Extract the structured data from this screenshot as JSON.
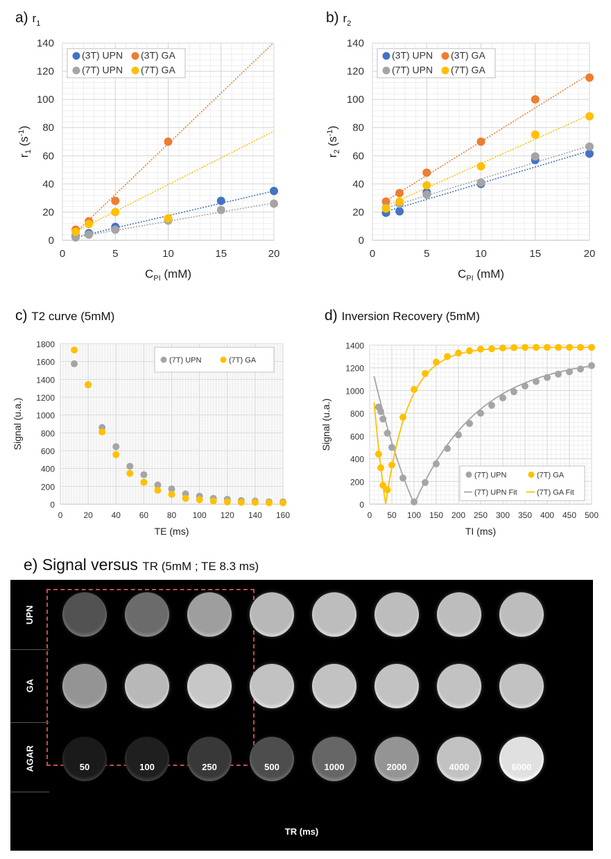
{
  "colors": {
    "upn_3t": "#4472C4",
    "ga_3t": "#ED7D31",
    "upn_7t": "#A5A5A5",
    "ga_7t": "#FFC000",
    "dash_box": "#C0504D"
  },
  "panel_a": {
    "letter": "a)",
    "title_main": "r",
    "title_sub": "1"
  },
  "panel_b": {
    "letter": "b)",
    "title_main": "r",
    "title_sub": "2"
  },
  "panel_c": {
    "letter": "c)",
    "title": "T2 curve (5mM)"
  },
  "panel_d": {
    "letter": "d)",
    "title": "Inversion Recovery (5mM)"
  },
  "panel_e": {
    "letter": "e)",
    "title_main": "Signal versus",
    "title_small": "TR (5mM ; TE 8.3 ms)"
  },
  "chart_data": [
    {
      "id": "a",
      "type": "scatter",
      "title": "r1",
      "xlabel": "C_PI (mM)",
      "ylabel": "r1 (s-1)",
      "xlim": [
        0,
        20
      ],
      "ylim": [
        0,
        140
      ],
      "xticks": [
        0,
        5,
        10,
        15,
        20
      ],
      "yticks": [
        0,
        20,
        40,
        60,
        80,
        100,
        120,
        140
      ],
      "grid": true,
      "legend_position": "top-left",
      "trendlines": "linear dotted",
      "series": [
        {
          "name": "(3T) UPN",
          "color": "#4472C4",
          "x": [
            1.25,
            2.5,
            5,
            10,
            15,
            20
          ],
          "y": [
            3,
            5,
            9.5,
            15,
            28,
            35
          ],
          "fit": [
            0,
            1.75
          ]
        },
        {
          "name": "(3T) GA",
          "color": "#ED7D31",
          "x": [
            1.25,
            2.5,
            5,
            10
          ],
          "y": [
            7.5,
            13.5,
            28,
            70
          ],
          "fit": [
            -3.5,
            7.2
          ]
        },
        {
          "name": "(7T) UPN",
          "color": "#A5A5A5",
          "x": [
            1.25,
            2.5,
            5,
            10,
            15,
            20
          ],
          "y": [
            2,
            4,
            7.5,
            14,
            21.5,
            26
          ],
          "fit": [
            0.5,
            1.3
          ]
        },
        {
          "name": "(7T) GA",
          "color": "#FFC000",
          "x": [
            1.25,
            2.5,
            5,
            10
          ],
          "y": [
            6,
            11.5,
            20,
            15.5
          ],
          "fit": [
            1.5,
            3.8
          ]
        }
      ]
    },
    {
      "id": "b",
      "type": "scatter",
      "title": "r2",
      "xlabel": "C_PI (mM)",
      "ylabel": "r2 (s-1)",
      "xlim": [
        0,
        20
      ],
      "ylim": [
        0,
        140
      ],
      "xticks": [
        0,
        5,
        10,
        15,
        20
      ],
      "yticks": [
        0,
        20,
        40,
        60,
        80,
        100,
        120,
        140
      ],
      "grid": true,
      "legend_position": "top-left",
      "trendlines": "linear dotted",
      "series": [
        {
          "name": "(3T) UPN",
          "color": "#4472C4",
          "x": [
            1.25,
            2.5,
            5,
            10,
            15,
            20
          ],
          "y": [
            19.5,
            20.5,
            34,
            40,
            57,
            61.5
          ],
          "fit": [
            17.5,
            2.3
          ]
        },
        {
          "name": "(3T) GA",
          "color": "#ED7D31",
          "x": [
            1.25,
            2.5,
            5,
            10,
            15,
            20
          ],
          "y": [
            27.5,
            33.5,
            48,
            70,
            100,
            115.5
          ],
          "fit": [
            22,
            4.8
          ]
        },
        {
          "name": "(7T) UPN",
          "color": "#A5A5A5",
          "x": [
            1.25,
            2.5,
            5,
            10,
            15,
            20
          ],
          "y": [
            23,
            26,
            32.5,
            41,
            59.5,
            66.5
          ],
          "fit": [
            20,
            2.35
          ]
        },
        {
          "name": "(7T) GA",
          "color": "#FFC000",
          "x": [
            1.25,
            2.5,
            5,
            10,
            15,
            20
          ],
          "y": [
            22.5,
            27.5,
            39,
            52.5,
            75,
            88
          ],
          "fit": [
            20,
            3.45
          ]
        }
      ]
    },
    {
      "id": "c",
      "type": "scatter",
      "title": "T2 curve (5mM)",
      "xlabel": "TE (ms)",
      "ylabel": "Signal (u.a.)",
      "xlim": [
        0,
        160
      ],
      "ylim": [
        0,
        1800
      ],
      "xticks": [
        0,
        20,
        40,
        60,
        80,
        100,
        120,
        140,
        160
      ],
      "yticks": [
        0,
        200,
        400,
        600,
        800,
        1000,
        1200,
        1400,
        1600,
        1800
      ],
      "grid": true,
      "legend_position": "top-right",
      "series": [
        {
          "name": "(7T) UPN",
          "color": "#A5A5A5",
          "x": [
            10,
            20,
            30,
            40,
            50,
            60,
            70,
            80,
            90,
            100,
            110,
            120,
            130,
            140,
            150,
            160
          ],
          "y": [
            1575,
            1340,
            860,
            645,
            425,
            330,
            215,
            170,
            115,
            90,
            65,
            55,
            40,
            35,
            25,
            25
          ]
        },
        {
          "name": "(7T) GA",
          "color": "#FFC000",
          "x": [
            10,
            20,
            30,
            40,
            50,
            60,
            70,
            80,
            90,
            100,
            110,
            120,
            130,
            140,
            150,
            160
          ],
          "y": [
            1730,
            1340,
            810,
            555,
            345,
            245,
            155,
            110,
            65,
            50,
            35,
            25,
            20,
            20,
            15,
            15
          ]
        }
      ]
    },
    {
      "id": "d",
      "type": "line",
      "title": "Inversion Recovery (5mM)",
      "xlabel": "TI (ms)",
      "ylabel": "Signal (u.a.)",
      "xlim": [
        0,
        500
      ],
      "ylim": [
        0,
        1400
      ],
      "xticks": [
        0,
        50,
        100,
        150,
        200,
        250,
        300,
        350,
        400,
        450,
        500
      ],
      "yticks": [
        0,
        200,
        400,
        600,
        800,
        1000,
        1200,
        1400
      ],
      "grid": true,
      "legend_position": "bottom-right",
      "series": [
        {
          "name": "(7T) UPN",
          "color": "#A5A5A5",
          "marker": "circle",
          "x": [
            20,
            25,
            30,
            40,
            50,
            75,
            100,
            125,
            150,
            175,
            200,
            225,
            250,
            275,
            300,
            325,
            350,
            375,
            400,
            425,
            450,
            475,
            500
          ],
          "y": [
            855,
            815,
            750,
            625,
            500,
            230,
            20,
            190,
            355,
            490,
            610,
            710,
            800,
            870,
            935,
            990,
            1040,
            1080,
            1115,
            1145,
            1165,
            1190,
            1220
          ]
        },
        {
          "name": "(7T) GA",
          "color": "#FFC000",
          "marker": "circle",
          "x": [
            20,
            25,
            30,
            40,
            50,
            75,
            100,
            125,
            150,
            175,
            200,
            225,
            250,
            275,
            300,
            325,
            350,
            375,
            400,
            425,
            450,
            475,
            500
          ],
          "y": [
            440,
            320,
            165,
            125,
            345,
            765,
            1010,
            1150,
            1250,
            1300,
            1330,
            1350,
            1365,
            1368,
            1375,
            1378,
            1380,
            1380,
            1380,
            1380,
            1380,
            1380,
            1380
          ]
        },
        {
          "name": "(7T) UPN Fit",
          "color": "#A5A5A5",
          "marker": "none",
          "model": "|S0*(1-2*exp(-TI/T1))|",
          "S0": 1300,
          "T1": 145
        },
        {
          "name": "(7T) GA Fit",
          "color": "#FFC000",
          "marker": "none",
          "model": "|S0*(1-2*exp(-TI/T1))|",
          "S0": 1380,
          "T1": 52
        }
      ]
    },
    {
      "id": "e",
      "type": "heatmap",
      "title": "Signal versus TR (5mM ; TE 8.3 ms)",
      "xlabel": "TR (ms)",
      "rows": [
        "UPN",
        "GA",
        "AGAR"
      ],
      "columns": [
        "50",
        "100",
        "250",
        "500",
        "1000",
        "2000",
        "4000",
        "6000"
      ],
      "relative_intensity": [
        [
          0.32,
          0.42,
          0.62,
          0.72,
          0.74,
          0.74,
          0.74,
          0.74
        ],
        [
          0.58,
          0.72,
          0.78,
          0.76,
          0.76,
          0.76,
          0.76,
          0.76
        ],
        [
          0.1,
          0.12,
          0.22,
          0.3,
          0.4,
          0.58,
          0.76,
          0.88
        ]
      ],
      "highlighted_columns": [
        "50",
        "100",
        "250"
      ]
    }
  ]
}
